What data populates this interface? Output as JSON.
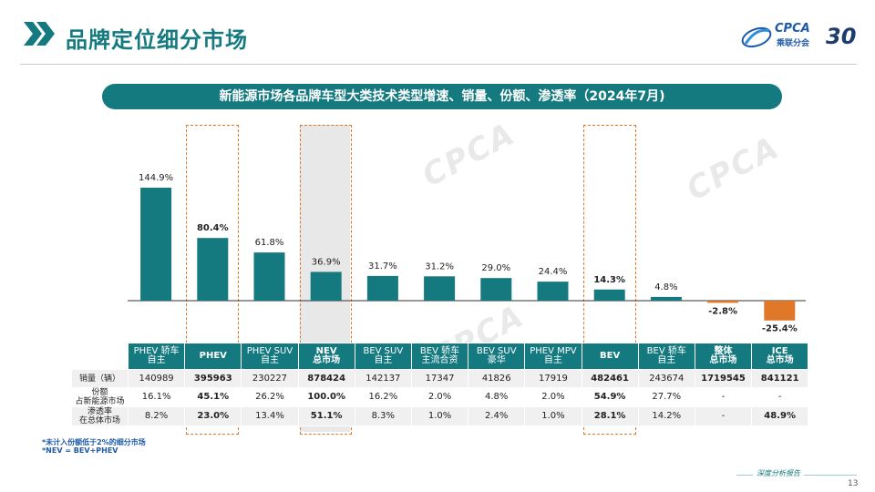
{
  "page": {
    "title": "品牌定位细分市场",
    "subtitle": "新能源市场各品牌车型大类技术类型增速、销量、份额、渗透率（2024年7月)",
    "page_number": "13",
    "report_label": "深度分析报告",
    "logo": {
      "text": "CPCA",
      "sub": "乘联分会",
      "anniversary": "30"
    },
    "watermark": "CPCA",
    "footnotes": [
      "*未计入份额低于2%的细分市场",
      "*NEV = BEV+PHEV"
    ]
  },
  "colors": {
    "teal": "#157a80",
    "orange": "#e0782a",
    "highlight_gray": "#d5d5d5",
    "dash_orange": "#e0782a"
  },
  "chart_data": {
    "type": "bar",
    "title": "新能源市场各品牌车型大类技术类型增速、销量、份额、渗透率（2024年7月)",
    "categories": [
      "PHEV 轿车 自主",
      "PHEV",
      "PHEV SUV 自主",
      "NEV 总市场",
      "BEV SUV 自主",
      "BEV 轿车 主流合资",
      "BEV SUV 豪华",
      "PHEV MPV 自主",
      "BEV",
      "BEV 轿车 自主",
      "整体 总市场",
      "ICE 总市场"
    ],
    "values": [
      144.9,
      80.4,
      61.8,
      36.9,
      31.7,
      31.2,
      29.0,
      24.4,
      14.3,
      4.8,
      -2.8,
      -25.4
    ],
    "value_labels": [
      "144.9%",
      "80.4%",
      "61.8%",
      "36.9%",
      "31.7%",
      "31.2%",
      "29.0%",
      "24.4%",
      "14.3%",
      "4.8%",
      "-2.8%",
      "-25.4%"
    ],
    "bold_labels": [
      false,
      true,
      false,
      false,
      false,
      false,
      false,
      false,
      true,
      false,
      true,
      true
    ],
    "bar_colors": [
      "#157a80",
      "#157a80",
      "#157a80",
      "#157a80",
      "#157a80",
      "#157a80",
      "#157a80",
      "#157a80",
      "#157a80",
      "#157a80",
      "#e0782a",
      "#e0782a"
    ],
    "ylim": [
      -30,
      160
    ],
    "grid": false,
    "legend": "none"
  },
  "table": {
    "headers": [
      [
        "PHEV 轿车",
        "自主"
      ],
      [
        "PHEV"
      ],
      [
        "PHEV SUV",
        "自主"
      ],
      [
        "NEV",
        "总市场"
      ],
      [
        "BEV SUV",
        "自主"
      ],
      [
        "BEV 轿车",
        "主流合资"
      ],
      [
        "BEV SUV",
        "豪华"
      ],
      [
        "PHEV MPV",
        "自主"
      ],
      [
        "BEV"
      ],
      [
        "BEV 轿车",
        "自主"
      ],
      [
        "整体",
        "总市场"
      ],
      [
        "ICE",
        "总市场"
      ]
    ],
    "bold_header": [
      false,
      true,
      false,
      true,
      false,
      false,
      false,
      false,
      true,
      false,
      true,
      true
    ],
    "rows": [
      {
        "label": [
          "销量（辆）"
        ],
        "values": [
          "140989",
          "395963",
          "230227",
          "878424",
          "142137",
          "17347",
          "41826",
          "17919",
          "482461",
          "243674",
          "1719545",
          "841121"
        ],
        "bold": [
          false,
          true,
          false,
          true,
          false,
          false,
          false,
          false,
          true,
          false,
          true,
          true
        ]
      },
      {
        "label": [
          "份额",
          "占新能源市场"
        ],
        "values": [
          "16.1%",
          "45.1%",
          "26.2%",
          "100.0%",
          "16.2%",
          "2.0%",
          "4.8%",
          "2.0%",
          "54.9%",
          "27.7%",
          "-",
          "-"
        ],
        "bold": [
          false,
          true,
          false,
          true,
          false,
          false,
          false,
          false,
          true,
          false,
          false,
          false
        ]
      },
      {
        "label": [
          "渗透率",
          "在总体市场"
        ],
        "values": [
          "8.2%",
          "23.0%",
          "13.4%",
          "51.1%",
          "8.3%",
          "1.0%",
          "2.4%",
          "1.0%",
          "28.1%",
          "14.2%",
          "-",
          "48.9%"
        ],
        "bold": [
          false,
          true,
          false,
          true,
          false,
          false,
          false,
          false,
          true,
          false,
          false,
          true
        ]
      }
    ]
  }
}
